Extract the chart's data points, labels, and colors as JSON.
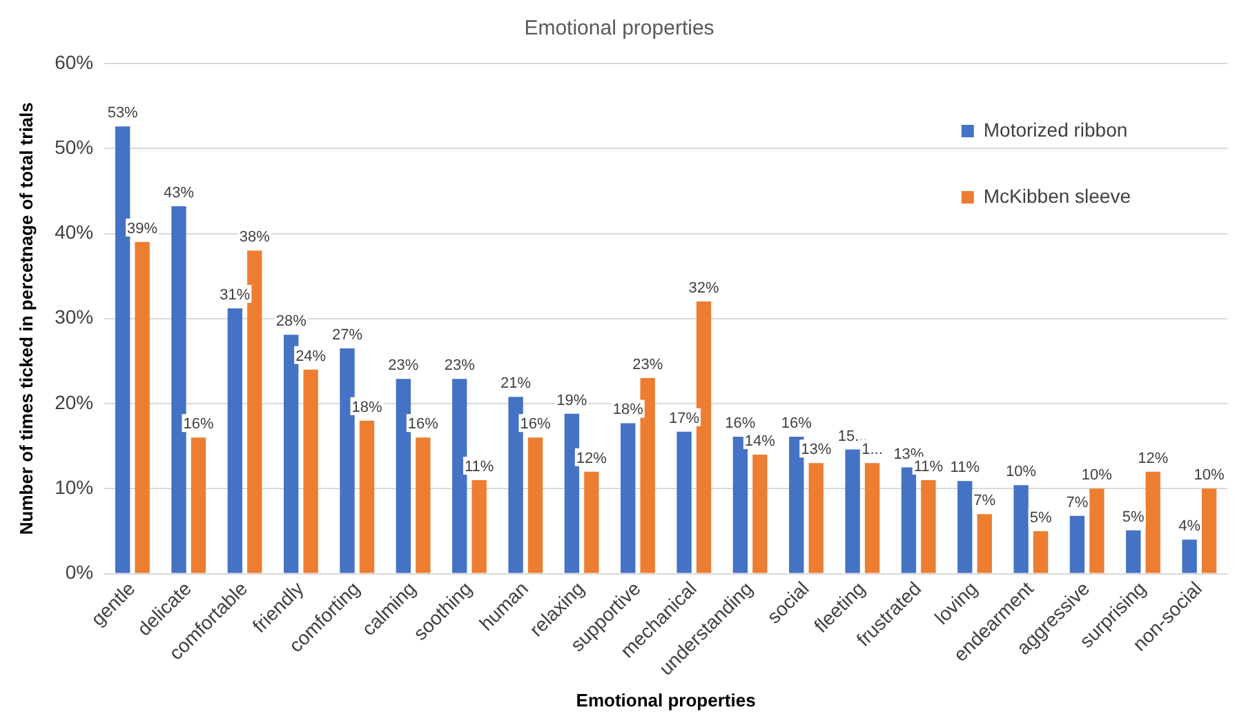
{
  "chart_data": {
    "type": "bar",
    "title": "Emotional properties",
    "xlabel": "Emotional properties",
    "ylabel": "Number of times ticked in percetnage of total trials",
    "categories": [
      "gentle",
      "delicate",
      "comfortable",
      "friendly",
      "comforting",
      "calming",
      "soothing",
      "human",
      "relaxing",
      "supportive",
      "mechanical",
      "understanding",
      "social",
      "fleeting",
      "frustrated",
      "loving",
      "endearment",
      "aggressive",
      "surprising",
      "non-social"
    ],
    "series": [
      {
        "name": "Motorized ribbon",
        "color": "#4472c4",
        "values": [
          52.6,
          43.2,
          31.2,
          28.1,
          26.5,
          22.9,
          22.9,
          20.8,
          18.8,
          17.7,
          16.7,
          16.1,
          16.1,
          14.6,
          12.5,
          10.9,
          10.4,
          6.8,
          5.1,
          4.0
        ],
        "value_labels": [
          "53%",
          "43%",
          "31%",
          "28%",
          "27%",
          "23%",
          "23%",
          "21%",
          "19%",
          "18%",
          "17%",
          "16%",
          "16%",
          "15...",
          "13%",
          "11%",
          "10%",
          "7%",
          "5%",
          "4%"
        ]
      },
      {
        "name": "McKibben sleeve",
        "color": "#ed7d31",
        "values": [
          39,
          16,
          38,
          24,
          18,
          16,
          11,
          16,
          12,
          23,
          32,
          14,
          13,
          13,
          11,
          7,
          5,
          10,
          12,
          10
        ],
        "value_labels": [
          "39%",
          "16%",
          "38%",
          "24%",
          "18%",
          "16%",
          "11%",
          "16%",
          "12%",
          "23%",
          "32%",
          "14%",
          "13%",
          "1...",
          "11%",
          "7%",
          "5%",
          "10%",
          "12%",
          "10%"
        ]
      }
    ],
    "ylim": [
      0,
      60
    ],
    "yticks": [
      {
        "value": 0,
        "label": "0%"
      },
      {
        "value": 10,
        "label": "10%"
      },
      {
        "value": 20,
        "label": "20%"
      },
      {
        "value": 30,
        "label": "30%"
      },
      {
        "value": 40,
        "label": "40%"
      },
      {
        "value": 50,
        "label": "50%"
      },
      {
        "value": 60,
        "label": "60%"
      }
    ],
    "grid": "y",
    "legend": "top right"
  }
}
